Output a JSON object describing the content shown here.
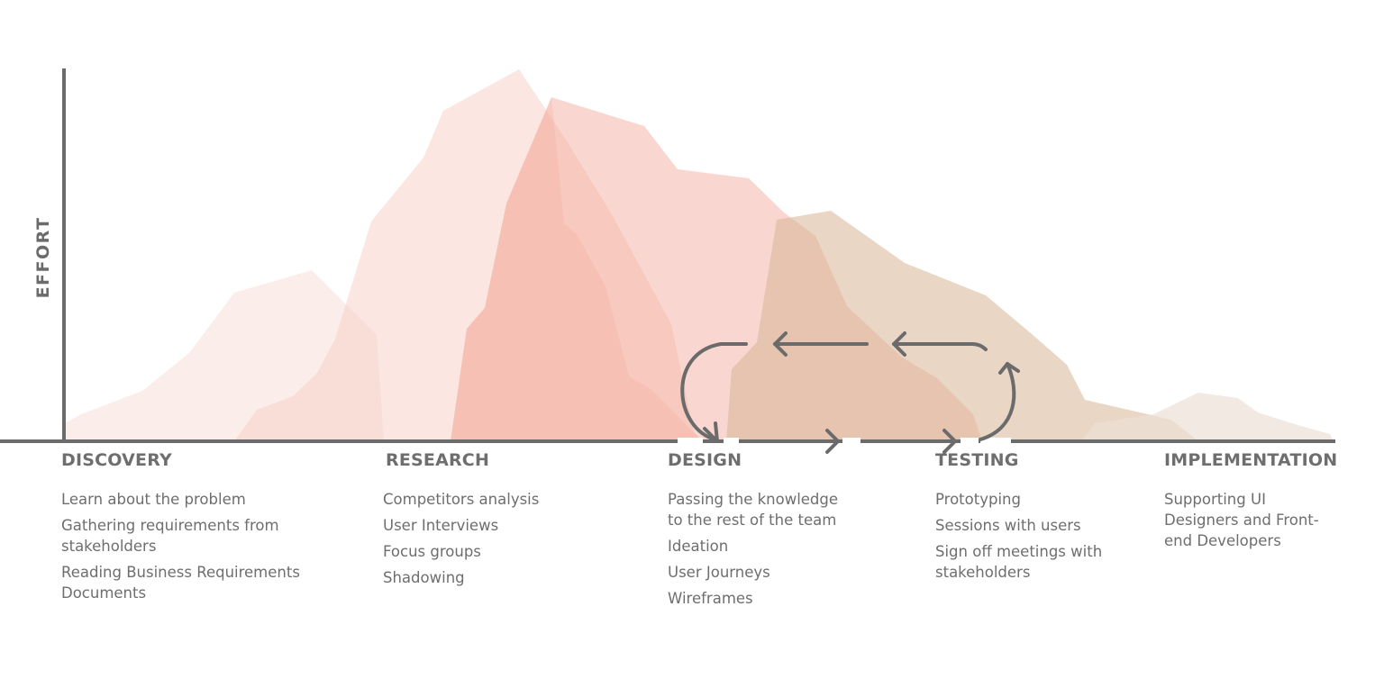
{
  "axis": {
    "y_label": "EFFORT"
  },
  "phases": [
    {
      "title": "DISCOVERY",
      "items": [
        "Learn about the problem",
        "Gathering requirements from stakeholders",
        "Reading Business Requirements Documents"
      ]
    },
    {
      "title": "RESEARCH",
      "items": [
        "Competitors analysis",
        "User Interviews",
        "Focus groups",
        "Shadowing"
      ]
    },
    {
      "title": "DESIGN",
      "items": [
        "Passing the knowledge to the rest of the team",
        "Ideation",
        "User Journeys",
        "Wireframes"
      ]
    },
    {
      "title": "TESTING",
      "items": [
        "Prototyping",
        "Sessions with users",
        "Sign off meetings with stakeholders"
      ]
    },
    {
      "title": "IMPLEMENTATION",
      "items": [
        "Supporting UI Designers and Front-end Developers"
      ]
    }
  ],
  "colors": {
    "axis": "#6b6b6b",
    "discovery_area": "#f9e2dc",
    "research_area": "#f7d2c9",
    "design_area": "#f2a797",
    "testing_area": "#d9b495",
    "implementation_area": "#ede0d6",
    "text": "#6e6e6e"
  },
  "loop": {
    "description_icons": [
      "arrow-left-icon",
      "arrow-left-icon",
      "arrow-right-icon",
      "arrow-right-icon"
    ]
  }
}
